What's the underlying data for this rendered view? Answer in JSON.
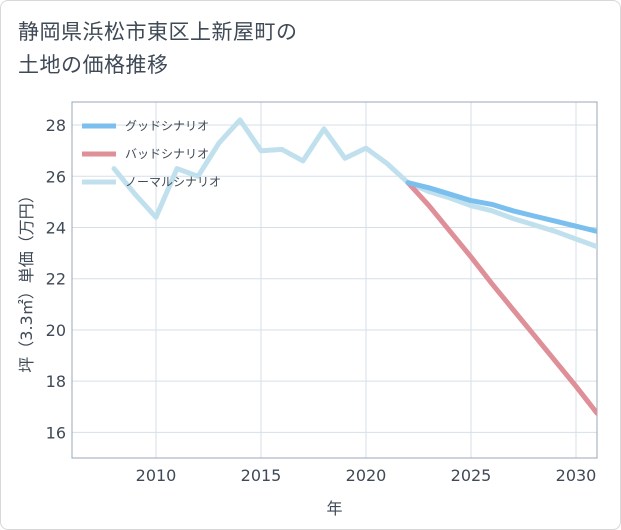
{
  "title_lines": [
    "静岡県浜松市東区上新屋町の",
    "土地の価格推移"
  ],
  "chart_data": {
    "type": "line",
    "xlabel": "年",
    "ylabel": "坪（3.3㎡）単価（万円）",
    "xlim": [
      2006,
      2031
    ],
    "ylim": [
      15,
      28.9
    ],
    "xticks": [
      2010,
      2015,
      2020,
      2025,
      2030
    ],
    "yticks": [
      16,
      18,
      20,
      22,
      24,
      26,
      28
    ],
    "grid": true,
    "legend_position": "top-left",
    "series": [
      {
        "name": "グッドシナリオ",
        "color": "#7bbfee",
        "x": [
          2022,
          2023,
          2024,
          2025,
          2026,
          2027,
          2028,
          2029,
          2030,
          2031
        ],
        "values": [
          25.75,
          25.55,
          25.3,
          25.05,
          24.9,
          24.65,
          24.45,
          24.25,
          24.05,
          23.85
        ]
      },
      {
        "name": "バッドシナリオ",
        "color": "#de8f98",
        "x": [
          2022,
          2023,
          2024,
          2025,
          2026,
          2027,
          2028,
          2029,
          2030,
          2031
        ],
        "values": [
          25.75,
          24.85,
          23.85,
          22.85,
          21.8,
          20.8,
          19.8,
          18.8,
          17.8,
          16.75
        ]
      },
      {
        "name": "ノーマルシナリオ",
        "color": "#c1e0ee",
        "x": [
          2008,
          2009,
          2010,
          2011,
          2012,
          2013,
          2014,
          2015,
          2016,
          2017,
          2018,
          2019,
          2020,
          2021,
          2022,
          2023,
          2024,
          2025,
          2026,
          2027,
          2028,
          2029,
          2030,
          2031
        ],
        "values": [
          26.3,
          25.3,
          24.4,
          26.3,
          26.0,
          27.3,
          28.2,
          27.0,
          27.05,
          26.6,
          27.85,
          26.7,
          27.1,
          26.5,
          25.75,
          25.4,
          25.15,
          24.85,
          24.65,
          24.35,
          24.1,
          23.85,
          23.55,
          23.25
        ]
      }
    ]
  }
}
